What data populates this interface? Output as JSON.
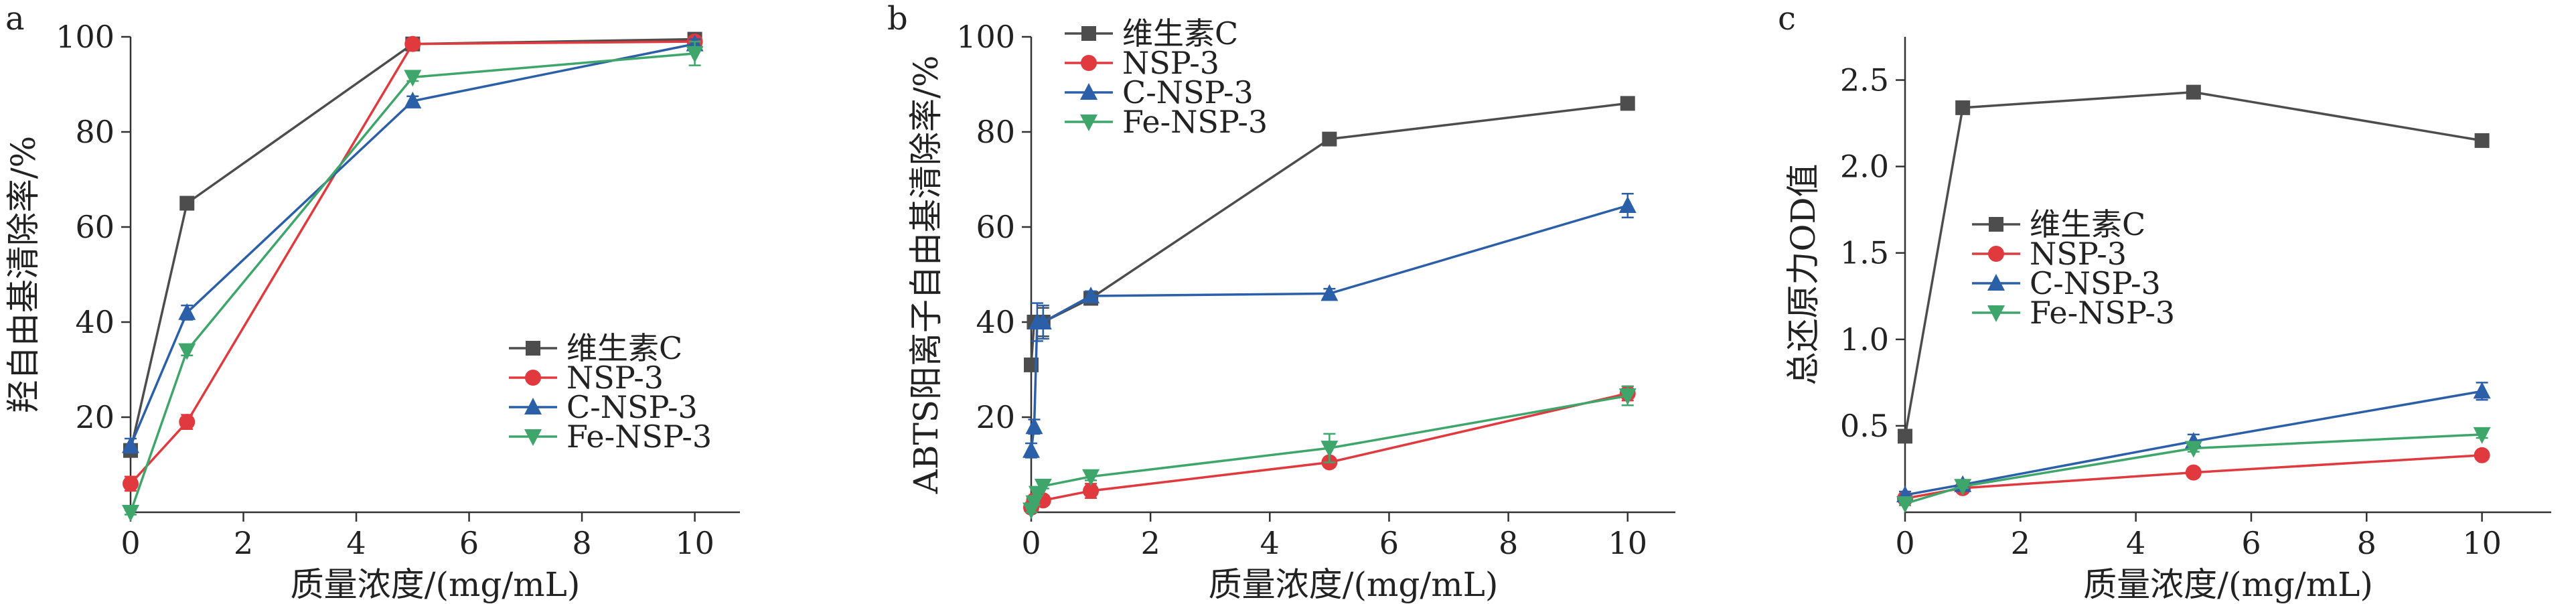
{
  "colors": {
    "vitc": "#4d4d4d",
    "nsp3": "#e0393e",
    "cnsp3": "#2b5fa8",
    "fensp3": "#3fa66b"
  },
  "chart_data": [
    {
      "type": "line",
      "panel_label": "a",
      "xlabel": "质量浓度/(mg/mL)",
      "ylabel": "羟自由基清除率/%",
      "xlim": [
        0,
        10.8
      ],
      "ylim": [
        0,
        100
      ],
      "xticks": [
        0,
        2,
        4,
        6,
        8,
        10
      ],
      "yticks": [
        20,
        40,
        60,
        80,
        100
      ],
      "legend_position": "lower-right",
      "x": [
        0,
        1,
        5,
        10
      ],
      "series": [
        {
          "name": "维生素C",
          "color_key": "vitc",
          "marker": "square",
          "values": [
            13,
            65,
            98.5,
            99.5
          ],
          "errors": [
            1,
            0.8,
            0.5,
            0.5
          ]
        },
        {
          "name": "NSP-3",
          "color_key": "nsp3",
          "marker": "circle",
          "values": [
            6,
            19,
            98.5,
            99
          ],
          "errors": [
            1.5,
            1.5,
            0.5,
            0.5
          ]
        },
        {
          "name": "C-NSP-3",
          "color_key": "cnsp3",
          "marker": "triangle-up",
          "values": [
            14,
            42,
            86.5,
            98.5
          ],
          "errors": [
            1.5,
            1.5,
            1,
            1
          ]
        },
        {
          "name": "Fe-NSP-3",
          "color_key": "fensp3",
          "marker": "triangle-down",
          "values": [
            0,
            34,
            91.5,
            96.5
          ],
          "errors": [
            0.5,
            1,
            0.8,
            2.5
          ]
        }
      ]
    },
    {
      "type": "line",
      "panel_label": "b",
      "xlabel": "质量浓度/(mg/mL)",
      "ylabel": "ABTS阳离子自由基清除率/%",
      "xlim": [
        0,
        10.8
      ],
      "ylim": [
        0,
        100
      ],
      "xticks": [
        0,
        2,
        4,
        6,
        8,
        10
      ],
      "yticks": [
        20,
        40,
        60,
        80,
        100
      ],
      "legend_position": "top-left",
      "x": [
        0,
        0.05,
        0.1,
        0.2,
        1,
        5,
        10
      ],
      "series": [
        {
          "name": "维生素C",
          "color_key": "vitc",
          "marker": "square",
          "values": [
            31,
            40,
            40,
            40,
            45,
            78.5,
            86
          ],
          "errors": [
            1,
            1,
            1,
            3,
            1,
            0.8,
            0.8
          ]
        },
        {
          "name": "NSP-3",
          "color_key": "nsp3",
          "marker": "circle",
          "values": [
            1,
            2.5,
            3,
            2.5,
            4.5,
            10.5,
            25
          ],
          "errors": [
            0.5,
            0.5,
            0.5,
            0.5,
            1.5,
            1,
            1.5
          ]
        },
        {
          "name": "C-NSP-3",
          "color_key": "cnsp3",
          "marker": "triangle-up",
          "values": [
            13,
            18,
            40,
            40,
            45.5,
            46,
            64.5
          ],
          "errors": [
            1.5,
            1.5,
            4,
            3.5,
            1,
            1,
            2.5
          ]
        },
        {
          "name": "Fe-NSP-3",
          "color_key": "fensp3",
          "marker": "triangle-down",
          "values": [
            0.5,
            2,
            4,
            5.5,
            7.5,
            13.5,
            24.5
          ],
          "errors": [
            0.5,
            0.5,
            0.5,
            0.5,
            0.8,
            3,
            2
          ]
        }
      ]
    },
    {
      "type": "line",
      "panel_label": "c",
      "xlabel": "质量浓度/(mg/mL)",
      "ylabel": "总还原力OD值",
      "xlim": [
        0,
        11.2
      ],
      "ylim": [
        0,
        2.75
      ],
      "xticks": [
        0,
        2,
        4,
        6,
        8,
        10
      ],
      "yticks": [
        0.5,
        1.0,
        1.5,
        2.0,
        2.5
      ],
      "ytick_labels": [
        "0.5",
        "1.0",
        "1.5",
        "2.0",
        "2.5"
      ],
      "legend_position": "middle-left",
      "x": [
        0,
        1,
        5,
        10
      ],
      "series": [
        {
          "name": "维生素C",
          "color_key": "vitc",
          "marker": "square",
          "values": [
            0.44,
            2.34,
            2.43,
            2.15
          ],
          "errors": [
            0.02,
            0.02,
            0.02,
            0.02
          ]
        },
        {
          "name": "NSP-3",
          "color_key": "nsp3",
          "marker": "circle",
          "values": [
            0.08,
            0.14,
            0.23,
            0.33
          ],
          "errors": [
            0.01,
            0.01,
            0.01,
            0.01
          ]
        },
        {
          "name": "C-NSP-3",
          "color_key": "cnsp3",
          "marker": "triangle-up",
          "values": [
            0.1,
            0.16,
            0.41,
            0.7
          ],
          "errors": [
            0.02,
            0.02,
            0.04,
            0.05
          ]
        },
        {
          "name": "Fe-NSP-3",
          "color_key": "fensp3",
          "marker": "triangle-down",
          "values": [
            0.05,
            0.15,
            0.37,
            0.45
          ],
          "errors": [
            0.01,
            0.01,
            0.02,
            0.02
          ]
        }
      ]
    }
  ]
}
